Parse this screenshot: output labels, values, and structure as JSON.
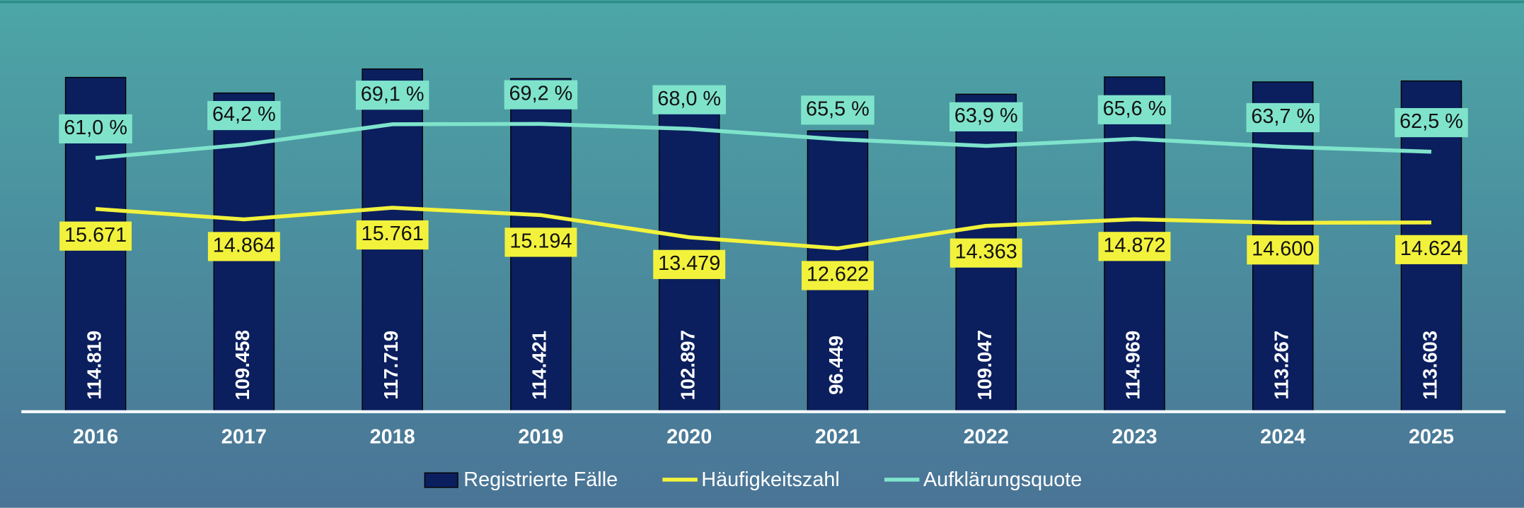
{
  "chart_data": {
    "type": "bar_line",
    "categories": [
      "2016",
      "2017",
      "2018",
      "2019",
      "2020",
      "2021",
      "2022",
      "2023",
      "2024",
      "2025"
    ],
    "ylim": [
      0,
      120000
    ],
    "y2lim": [
      0,
      27000
    ],
    "y3lim": [
      0,
      84
    ],
    "legend": "bottom",
    "series": [
      {
        "name": "Registrierte Fälle",
        "type": "bar",
        "color": "#0b1f5e",
        "values": [
          114819,
          109458,
          117719,
          114421,
          102897,
          96449,
          109047,
          114969,
          113267,
          113603
        ],
        "value_labels": [
          "114.819",
          "109.458",
          "117.719",
          "114.421",
          "102.897",
          "96.449",
          "109.047",
          "114.969",
          "113.267",
          "113.603"
        ]
      },
      {
        "name": "Häufigkeitszahl",
        "type": "line",
        "axis": "y2",
        "color": "#f2f23c",
        "values": [
          15671,
          14864,
          15761,
          15194,
          13479,
          12622,
          14363,
          14872,
          14600,
          14624
        ],
        "value_labels": [
          "15.671",
          "14.864",
          "15.761",
          "15.194",
          "13.479",
          "12.622",
          "14.363",
          "14.872",
          "14.600",
          "14.624"
        ]
      },
      {
        "name": "Aufklärungsquote",
        "type": "line",
        "axis": "y3",
        "color": "#7fe3cc",
        "values": [
          61.0,
          64.2,
          69.1,
          69.2,
          68.0,
          65.5,
          63.9,
          65.6,
          63.7,
          62.5
        ],
        "value_labels": [
          "61,0 %",
          "64,2 %",
          "69,1 %",
          "69,2 %",
          "68,0 %",
          "65,5 %",
          "63,9 %",
          "65,6 %",
          "63,7 %",
          "62,5 %"
        ]
      }
    ]
  }
}
